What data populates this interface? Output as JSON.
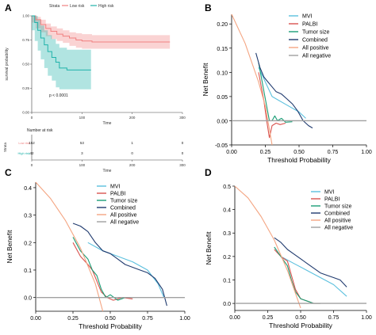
{
  "panels": {
    "A": {
      "letter": "A",
      "strata_title": "Strata",
      "legend_low": "Low risk",
      "legend_high": "High risk",
      "ylabel": "survival probability",
      "xlabel": "Time",
      "pvalue": "p < 0.0001",
      "yticks": [
        "0.00",
        "0.25",
        "0.50",
        "0.75",
        "1.00"
      ],
      "xticks": [
        "0",
        "100",
        "200",
        "300"
      ],
      "risk_title": "Number at risk",
      "risk_strata_label": "Strata",
      "risk_xlabel": "Time",
      "risk_row_low": "Low risk",
      "risk_row_high": "High risk",
      "risk_low": [
        "152",
        "53",
        "1",
        "0"
      ],
      "risk_high": [
        "42",
        "3",
        "0",
        "0"
      ]
    },
    "B": {
      "letter": "B"
    },
    "C": {
      "letter": "C"
    },
    "D": {
      "letter": "D"
    }
  },
  "chart_data": [
    {
      "type": "line",
      "panel": "A",
      "title": "",
      "xlabel": "Time",
      "ylabel": "survival probability",
      "xlim": [
        0,
        300
      ],
      "ylim": [
        0,
        1
      ],
      "colors": {
        "low": "#F08080",
        "high": "#20B2AA"
      },
      "series": [
        {
          "name": "Low risk",
          "x": [
            0,
            8,
            18,
            28,
            38,
            50,
            62,
            75,
            88,
            100,
            120,
            160,
            200,
            260,
            275
          ],
          "y": [
            1.0,
            0.96,
            0.91,
            0.87,
            0.84,
            0.81,
            0.79,
            0.77,
            0.75,
            0.74,
            0.73,
            0.73,
            0.73,
            0.73,
            0.73
          ],
          "ci_low": [
            1.0,
            0.93,
            0.87,
            0.83,
            0.79,
            0.76,
            0.74,
            0.72,
            0.69,
            0.67,
            0.66,
            0.66,
            0.66,
            0.66,
            0.66
          ],
          "ci_high": [
            1.0,
            0.99,
            0.96,
            0.92,
            0.89,
            0.87,
            0.85,
            0.83,
            0.82,
            0.81,
            0.8,
            0.8,
            0.8,
            0.8,
            0.8
          ]
        },
        {
          "name": "High risk",
          "x": [
            0,
            6,
            12,
            18,
            25,
            32,
            40,
            48,
            55,
            70,
            100,
            118
          ],
          "y": [
            1.0,
            0.93,
            0.85,
            0.77,
            0.7,
            0.63,
            0.57,
            0.52,
            0.46,
            0.44,
            0.44,
            0.44
          ],
          "ci_low": [
            1.0,
            0.85,
            0.74,
            0.64,
            0.55,
            0.46,
            0.38,
            0.33,
            0.26,
            0.24,
            0.24,
            0.24
          ],
          "ci_high": [
            1.0,
            1.0,
            0.96,
            0.9,
            0.85,
            0.8,
            0.76,
            0.71,
            0.67,
            0.65,
            0.65,
            0.65
          ]
        }
      ]
    },
    {
      "type": "line",
      "panel": "B",
      "xlabel": "Threshold Probability",
      "ylabel": "Net Benefit",
      "xlim": [
        0,
        1
      ],
      "ylim": [
        -0.05,
        0.22
      ],
      "xticks": [
        "0.00",
        "0.25",
        "0.50",
        "0.75",
        "1.00"
      ],
      "yticks": [
        "-0.05",
        "0.00",
        "0.05",
        "0.10",
        "0.15",
        "0.20"
      ],
      "series": [
        {
          "name": "MVI",
          "color": "#5BC0DE",
          "x": [
            0.2,
            0.3,
            0.4,
            0.5,
            0.55
          ],
          "y": [
            0.11,
            0.05,
            0.034,
            0.018,
            0.005
          ]
        },
        {
          "name": "PALBI",
          "color": "#D9534F",
          "x": [
            0.2,
            0.22,
            0.24,
            0.26,
            0.28,
            0.3,
            0.33,
            0.36,
            0.4
          ],
          "y": [
            0.1,
            0.07,
            0.04,
            0.0,
            -0.035,
            -0.01,
            -0.005,
            -0.008,
            -0.005
          ]
        },
        {
          "name": "Tumor size",
          "color": "#1B9E77",
          "x": [
            0.2,
            0.22,
            0.24,
            0.26,
            0.28,
            0.3,
            0.32,
            0.34,
            0.37,
            0.4,
            0.45
          ],
          "y": [
            0.12,
            0.09,
            0.06,
            0.03,
            0.0,
            0.0,
            0.01,
            0.0,
            0.005,
            -0.003,
            -0.002
          ]
        },
        {
          "name": "Combined",
          "color": "#1F3A6E",
          "x": [
            0.18,
            0.21,
            0.24,
            0.27,
            0.3,
            0.33,
            0.37,
            0.41,
            0.45,
            0.49,
            0.53,
            0.57,
            0.6
          ],
          "y": [
            0.14,
            0.11,
            0.09,
            0.08,
            0.07,
            0.06,
            0.055,
            0.045,
            0.035,
            0.02,
            0.0,
            -0.01,
            -0.015
          ]
        },
        {
          "name": "All positive",
          "color": "#F4A582",
          "x": [
            0.0,
            0.1,
            0.2,
            0.25,
            0.3
          ],
          "y": [
            0.22,
            0.16,
            0.08,
            0.03,
            -0.05
          ]
        },
        {
          "name": "All negative",
          "color": "#A0A0A0",
          "x": [
            0.0,
            1.0
          ],
          "y": [
            0.0,
            0.0
          ]
        }
      ]
    },
    {
      "type": "line",
      "panel": "C",
      "xlabel": "Threshold Probability",
      "ylabel": "Net Benefit",
      "xlim": [
        0,
        1
      ],
      "ylim": [
        -0.05,
        0.42
      ],
      "xticks": [
        "0.00",
        "0.25",
        "0.50",
        "0.75",
        "1.00"
      ],
      "yticks": [
        "0.0",
        "0.1",
        "0.2",
        "0.3",
        "0.4"
      ],
      "series": [
        {
          "name": "MVI",
          "color": "#5BC0DE",
          "x": [
            0.35,
            0.45,
            0.55,
            0.65,
            0.75,
            0.82,
            0.86
          ],
          "y": [
            0.2,
            0.17,
            0.15,
            0.13,
            0.1,
            0.05,
            0.0
          ]
        },
        {
          "name": "PALBI",
          "color": "#D9534F",
          "x": [
            0.25,
            0.3,
            0.35,
            0.38,
            0.41,
            0.44,
            0.48,
            0.52,
            0.58,
            0.65
          ],
          "y": [
            0.2,
            0.15,
            0.12,
            0.1,
            0.06,
            0.02,
            0.0,
            -0.01,
            0.0,
            -0.005
          ]
        },
        {
          "name": "Tumor size",
          "color": "#1B9E77",
          "x": [
            0.25,
            0.3,
            0.35,
            0.38,
            0.41,
            0.44,
            0.47,
            0.5,
            0.55,
            0.6
          ],
          "y": [
            0.22,
            0.17,
            0.14,
            0.1,
            0.08,
            0.03,
            0.0,
            0.01,
            -0.01,
            0.0
          ]
        },
        {
          "name": "Combined",
          "color": "#1F3A6E",
          "x": [
            0.25,
            0.3,
            0.35,
            0.4,
            0.45,
            0.5,
            0.55,
            0.6,
            0.65,
            0.7,
            0.75,
            0.8,
            0.85,
            0.88
          ],
          "y": [
            0.27,
            0.26,
            0.24,
            0.2,
            0.17,
            0.16,
            0.14,
            0.12,
            0.11,
            0.1,
            0.09,
            0.07,
            0.03,
            -0.03
          ]
        },
        {
          "name": "All positive",
          "color": "#F4A582",
          "x": [
            0.0,
            0.1,
            0.2,
            0.3,
            0.4,
            0.45
          ],
          "y": [
            0.42,
            0.36,
            0.28,
            0.18,
            0.05,
            -0.05
          ]
        },
        {
          "name": "All negative",
          "color": "#A0A0A0",
          "x": [
            0.0,
            1.0
          ],
          "y": [
            0.0,
            0.0
          ]
        }
      ]
    },
    {
      "type": "line",
      "panel": "D",
      "xlabel": "Threshold Probability",
      "ylabel": "Net Benefit",
      "xlim": [
        0,
        1
      ],
      "ylim": [
        -0.03,
        0.5
      ],
      "xticks": [
        "0.00",
        "0.25",
        "0.50",
        "0.75",
        "1.00"
      ],
      "yticks": [
        "0.0",
        "0.1",
        "0.2",
        "0.3",
        "0.4",
        "0.5"
      ],
      "series": [
        {
          "name": "MVI",
          "color": "#5BC0DE",
          "x": [
            0.35,
            0.45,
            0.55,
            0.65,
            0.75,
            0.85
          ],
          "y": [
            0.2,
            0.17,
            0.14,
            0.11,
            0.08,
            0.03
          ]
        },
        {
          "name": "PALBI",
          "color": "#D9534F",
          "x": [
            0.3,
            0.35,
            0.4,
            0.43,
            0.46,
            0.5,
            0.55,
            0.6,
            0.65
          ],
          "y": [
            0.23,
            0.2,
            0.18,
            0.12,
            0.06,
            0.02,
            0.01,
            0.0,
            0.0
          ]
        },
        {
          "name": "Tumor size",
          "color": "#1B9E77",
          "x": [
            0.3,
            0.35,
            0.4,
            0.43,
            0.46,
            0.5,
            0.55,
            0.6,
            0.65
          ],
          "y": [
            0.24,
            0.2,
            0.16,
            0.1,
            0.05,
            0.02,
            0.01,
            0.0,
            0.0
          ]
        },
        {
          "name": "Combined",
          "color": "#1F3A6E",
          "x": [
            0.3,
            0.35,
            0.4,
            0.45,
            0.5,
            0.55,
            0.6,
            0.65,
            0.7,
            0.75,
            0.8,
            0.85
          ],
          "y": [
            0.28,
            0.26,
            0.23,
            0.21,
            0.19,
            0.17,
            0.15,
            0.13,
            0.12,
            0.11,
            0.1,
            0.07
          ]
        },
        {
          "name": "All positive",
          "color": "#F4A582",
          "x": [
            0.0,
            0.1,
            0.2,
            0.3,
            0.4,
            0.5
          ],
          "y": [
            0.5,
            0.45,
            0.37,
            0.27,
            0.14,
            -0.02
          ]
        },
        {
          "name": "All negative",
          "color": "#A0A0A0",
          "x": [
            0.0,
            1.0
          ],
          "y": [
            0.0,
            0.0
          ]
        }
      ]
    }
  ]
}
